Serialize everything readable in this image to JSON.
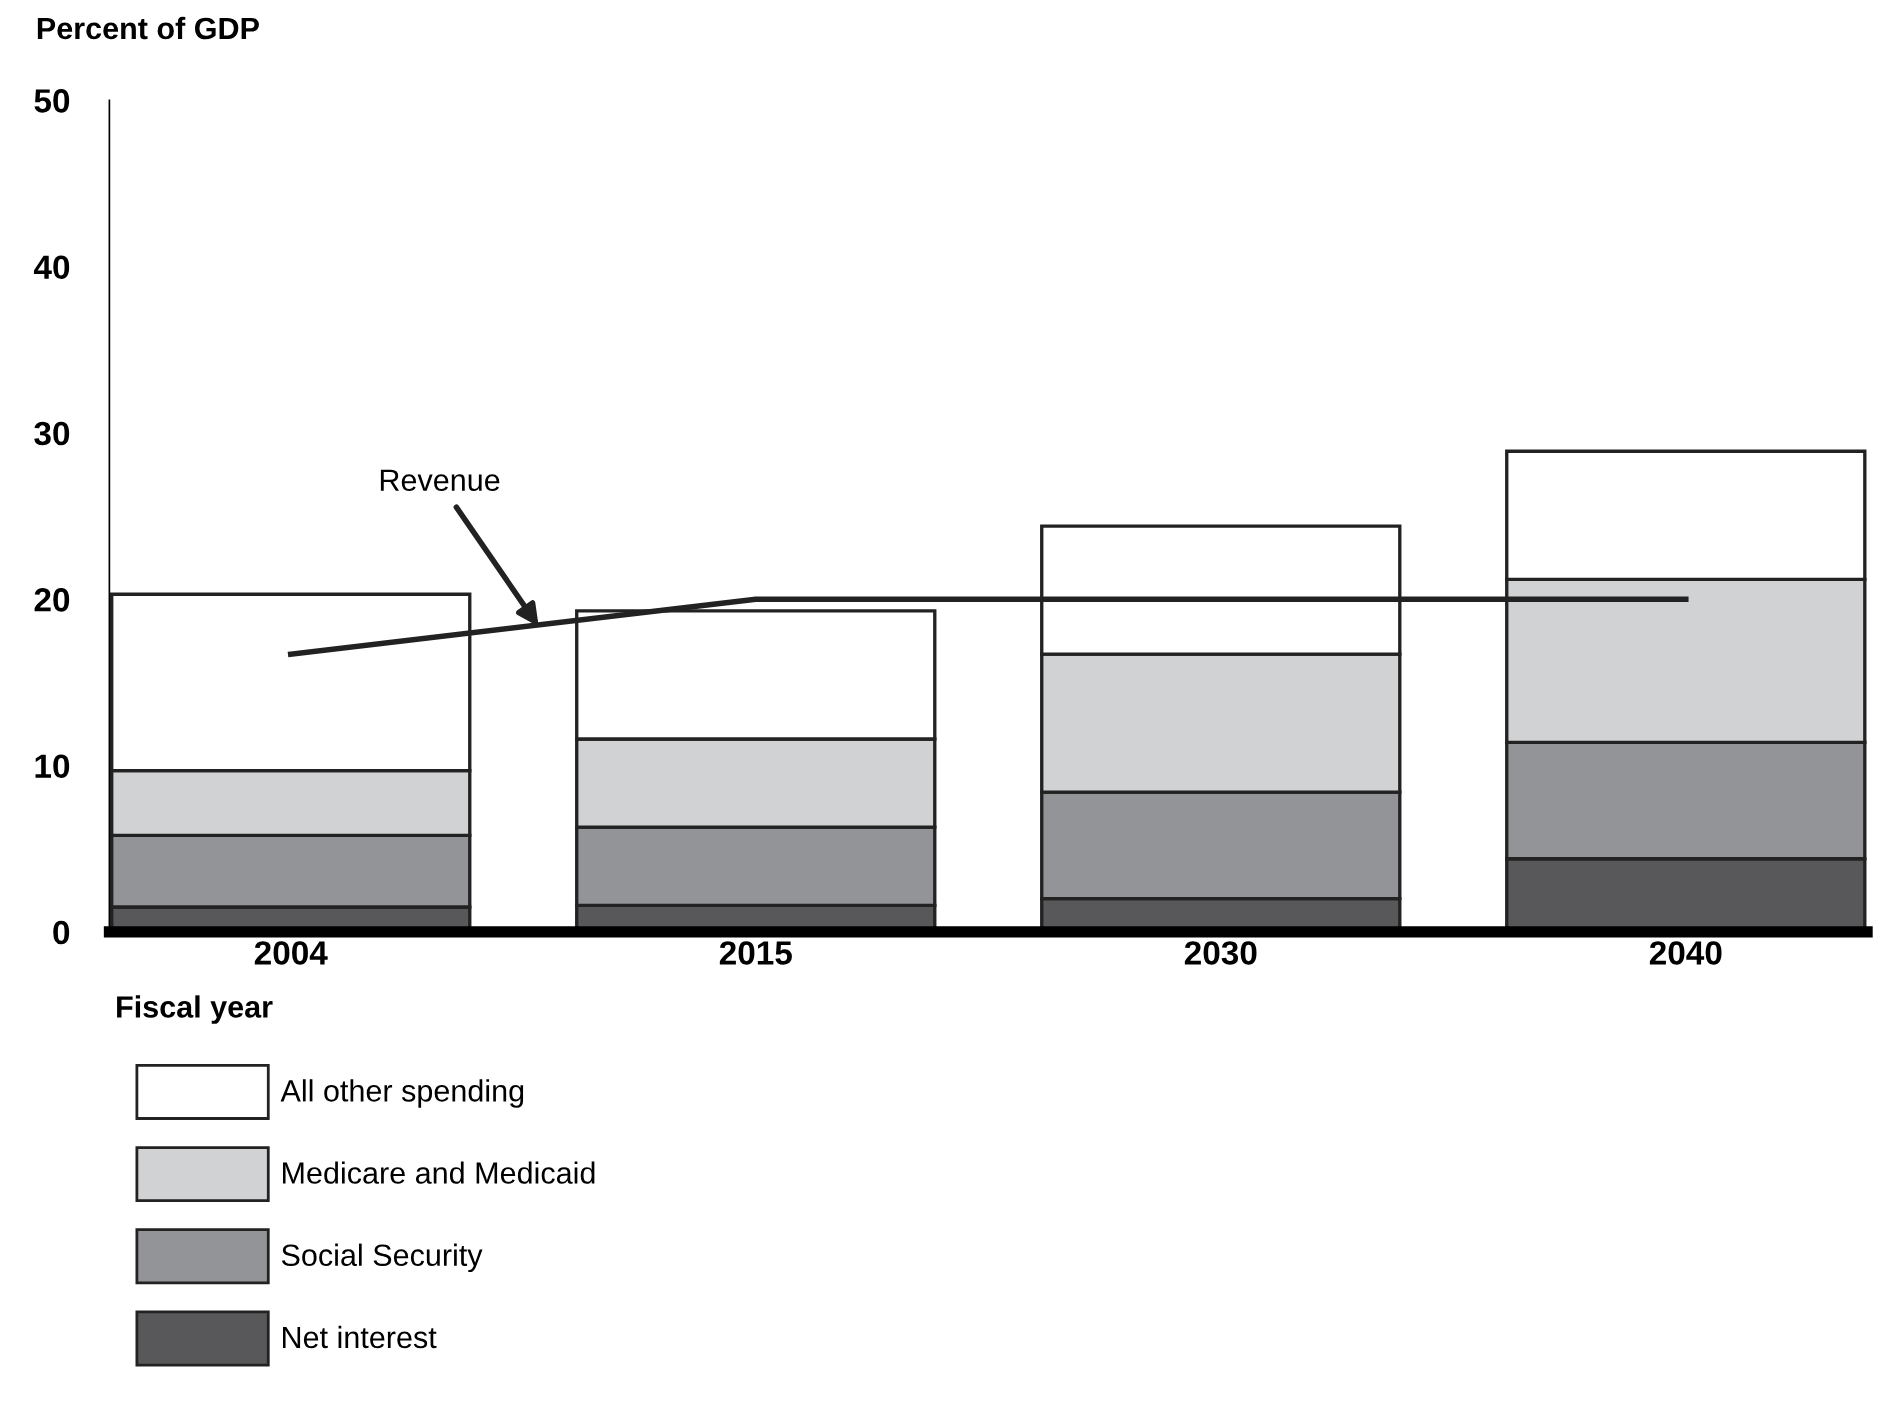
{
  "chart_data": {
    "type": "bar",
    "stacked": true,
    "ylabel": "Percent of GDP",
    "xlabel": "Fiscal year",
    "categories": [
      "2004",
      "2015",
      "2030",
      "2040"
    ],
    "series": [
      {
        "name": "Net interest",
        "color": "#58585a",
        "values": [
          1.5,
          1.6,
          2.0,
          4.4
        ]
      },
      {
        "name": "Social Security",
        "color": "#939497",
        "values": [
          4.3,
          4.7,
          6.4,
          7.0
        ]
      },
      {
        "name": "Medicare and Medicaid",
        "color": "#d1d2d4",
        "values": [
          3.9,
          5.3,
          8.3,
          9.8
        ]
      },
      {
        "name": "All other spending",
        "color": "#ffffff",
        "values": [
          10.6,
          7.7,
          7.7,
          7.7
        ]
      },
      {
        "name": "Revenue",
        "type": "line",
        "color": "#222222",
        "values": [
          16.7,
          20.0,
          20.0,
          20.0
        ]
      }
    ],
    "ylim": [
      0,
      50
    ],
    "yticks": [
      0,
      10,
      20,
      30,
      40,
      50
    ],
    "grid": false,
    "legend": "bottom left"
  }
}
